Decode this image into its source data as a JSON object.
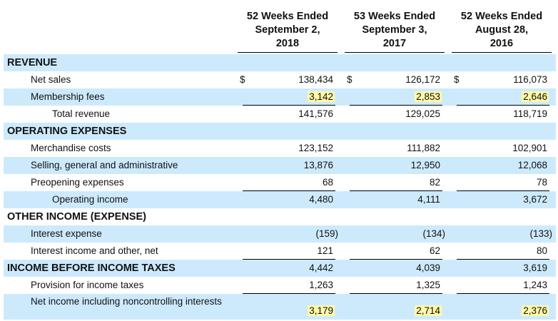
{
  "headers": [
    {
      "l1": "52 Weeks Ended",
      "l2": "September 2,",
      "l3": "2018"
    },
    {
      "l1": "53 Weeks Ended",
      "l2": "September 3,",
      "l3": "2017"
    },
    {
      "l1": "52 Weeks Ended",
      "l2": "August 28,",
      "l3": "2016"
    }
  ],
  "currency_symbol": "$",
  "rows": [
    {
      "label": "REVENUE"
    },
    {
      "label": "Net sales",
      "v": [
        "138,434",
        "126,172",
        "116,073"
      ]
    },
    {
      "label": "Membership fees",
      "v": [
        "3,142",
        "2,853",
        "2,646"
      ]
    },
    {
      "label": "Total revenue",
      "v": [
        "141,576",
        "129,025",
        "118,719"
      ]
    },
    {
      "label": "OPERATING EXPENSES"
    },
    {
      "label": "Merchandise costs",
      "v": [
        "123,152",
        "111,882",
        "102,901"
      ]
    },
    {
      "label": "Selling, general and administrative",
      "v": [
        "13,876",
        "12,950",
        "12,068"
      ]
    },
    {
      "label": "Preopening expenses",
      "v": [
        "68",
        "82",
        "78"
      ]
    },
    {
      "label": "Operating income",
      "v": [
        "4,480",
        "4,111",
        "3,672"
      ]
    },
    {
      "label": "OTHER INCOME (EXPENSE)"
    },
    {
      "label": "Interest expense",
      "v": [
        "(159)",
        "(134)",
        "(133)"
      ]
    },
    {
      "label": "Interest income and other, net",
      "v": [
        "121",
        "62",
        "80"
      ]
    },
    {
      "label": "INCOME BEFORE INCOME TAXES",
      "v": [
        "4,442",
        "4,039",
        "3,619"
      ]
    },
    {
      "label": "Provision for income taxes",
      "v": [
        "1,263",
        "1,325",
        "1,243"
      ]
    },
    {
      "label": "Net income including noncontrolling interests",
      "v": [
        "3,179",
        "2,714",
        "2,376"
      ]
    }
  ],
  "colors": {
    "row_shade": "#cdeafd",
    "highlight": "#fff9a8"
  }
}
